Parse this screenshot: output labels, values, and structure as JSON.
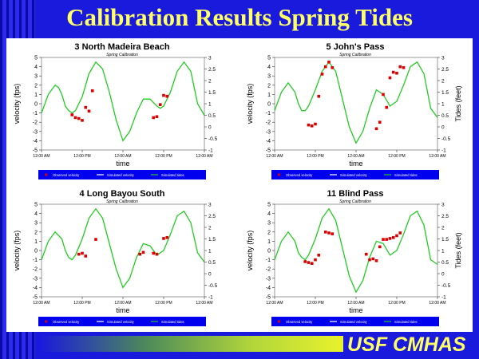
{
  "slide": {
    "title": "Calibration Results Spring Tides",
    "footer": "USF CMHAS"
  },
  "colors": {
    "background": "#1a1adc",
    "title": "#ffff66",
    "tide_line": "#22cc22",
    "observed": "#dd0000",
    "legend_bar": "#0000ee"
  },
  "chart_data": [
    {
      "type": "line",
      "title": "3 North Madeira Beach",
      "subtitle": "Spring Calibration",
      "xlabel": "time",
      "ylabel": "velocity (fps)",
      "y2label": "",
      "ylim": [
        -5,
        5
      ],
      "yticks": [
        "5",
        "4",
        "3",
        "2",
        "1",
        "0",
        "-1",
        "-2",
        "-3",
        "-4",
        "-5"
      ],
      "y2lim": [
        -1,
        3
      ],
      "y2ticks": [
        "3",
        "2.5",
        "2",
        "1.5",
        "1",
        "0.5",
        "0",
        "-0.5",
        "-1"
      ],
      "xticks": [
        "12:00 AM",
        "12:00 PM",
        "12:00 AM",
        "12:00 PM",
        "12:00 AM"
      ],
      "legend": [
        "Observed velocity",
        "Simulated velocity",
        "Simulated tides"
      ],
      "series": [
        {
          "name": "Simulated tides",
          "axis": "right",
          "x": [
            0,
            2,
            4,
            5,
            6,
            7,
            8,
            9,
            10,
            12,
            14,
            16,
            18,
            20,
            22,
            24,
            26,
            28,
            30,
            32,
            34,
            35,
            36,
            38,
            40,
            42,
            44,
            46,
            48
          ],
          "y": [
            0.6,
            1.4,
            1.8,
            1.7,
            1.4,
            0.9,
            0.7,
            0.6,
            0.7,
            1.3,
            2.3,
            2.8,
            2.5,
            1.5,
            0.3,
            -0.6,
            -0.2,
            0.6,
            1.2,
            1.2,
            0.9,
            0.8,
            0.9,
            1.5,
            2.4,
            2.8,
            2.4,
            1.0,
            0.5
          ]
        },
        {
          "name": "Observed velocity",
          "axis": "left",
          "x": [
            9,
            10,
            11,
            12,
            13,
            14,
            15,
            33,
            34,
            35,
            36,
            37
          ],
          "y": [
            -1.2,
            -1.5,
            -1.6,
            -1.8,
            -0.4,
            -0.8,
            1.4,
            -1.5,
            -1.4,
            -0.1,
            0.9,
            0.8
          ]
        }
      ]
    },
    {
      "type": "line",
      "title": "5 John's Pass",
      "subtitle": "Spring Calibration",
      "xlabel": "time",
      "ylabel": "velocity (fps)",
      "y2label": "Tides (feet)",
      "ylim": [
        -5,
        5
      ],
      "yticks": [
        "5",
        "4",
        "3",
        "2",
        "1",
        "0",
        "-1",
        "-2",
        "-3",
        "-4",
        "-5"
      ],
      "y2lim": [
        -1,
        3
      ],
      "y2ticks": [
        "3",
        "2.5",
        "2",
        "1.5",
        "1",
        "0.5",
        "0",
        "-0.5",
        "-1"
      ],
      "xticks": [
        "12:00 AM",
        "12:00 PM",
        "12:00 AM",
        "12:00 PM",
        "12:00 AM"
      ],
      "legend": [
        "Observed velocity",
        "Simulated velocity",
        "Simulated tides"
      ],
      "series": [
        {
          "name": "Simulated tides",
          "axis": "right",
          "x": [
            0,
            2,
            4,
            6,
            7,
            8,
            9,
            10,
            12,
            14,
            16,
            18,
            20,
            22,
            24,
            26,
            28,
            30,
            32,
            34,
            36,
            38,
            40,
            42,
            44,
            46,
            48
          ],
          "y": [
            0.7,
            1.5,
            1.9,
            1.5,
            1.0,
            0.7,
            0.7,
            0.9,
            1.6,
            2.4,
            2.8,
            2.4,
            1.2,
            0.0,
            -0.7,
            -0.2,
            0.8,
            1.6,
            1.4,
            0.9,
            1.1,
            1.8,
            2.6,
            2.8,
            2.3,
            0.8,
            0.4
          ]
        },
        {
          "name": "Observed velocity",
          "axis": "left",
          "x": [
            10,
            11,
            12,
            13,
            14,
            15,
            16,
            17,
            30,
            31,
            32,
            33,
            34,
            35,
            36,
            37,
            38
          ],
          "y": [
            -2.3,
            -2.4,
            -2.2,
            0.8,
            3.2,
            4.0,
            4.5,
            3.9,
            -2.7,
            -2.0,
            1.0,
            -0.4,
            2.8,
            3.4,
            3.3,
            4.0,
            3.9
          ]
        }
      ]
    },
    {
      "type": "line",
      "title": "4 Long Bayou South",
      "subtitle": "Spring Calibration",
      "xlabel": "time",
      "ylabel": "velocity (fps)",
      "y2label": "",
      "ylim": [
        -5,
        5
      ],
      "yticks": [
        "5",
        "4",
        "3",
        "2",
        "1",
        "0",
        "-1",
        "-2",
        "-3",
        "-4",
        "-5"
      ],
      "y2lim": [
        -1,
        3
      ],
      "y2ticks": [
        "3",
        "2.5",
        "2",
        "1.5",
        "1",
        "0.5",
        "0",
        "-0.5",
        "-1"
      ],
      "xticks": [
        "12:00 AM",
        "12:00 PM",
        "12:00 AM",
        "12:00 PM",
        "12:00 AM"
      ],
      "legend": [
        "Observed velocity",
        "Simulated velocity",
        "Simulated tides"
      ],
      "series": [
        {
          "name": "Simulated tides",
          "axis": "right",
          "x": [
            0,
            2,
            4,
            6,
            7,
            8,
            9,
            10,
            12,
            14,
            16,
            18,
            20,
            22,
            24,
            26,
            28,
            30,
            32,
            34,
            36,
            38,
            40,
            42,
            44,
            46,
            48
          ],
          "y": [
            0.6,
            1.4,
            1.8,
            1.5,
            1.0,
            0.7,
            0.6,
            0.8,
            1.5,
            2.4,
            2.8,
            2.4,
            1.3,
            0.2,
            -0.6,
            -0.2,
            0.7,
            1.3,
            1.2,
            0.8,
            1.0,
            1.7,
            2.5,
            2.7,
            2.2,
            0.9,
            0.5
          ]
        },
        {
          "name": "Observed velocity",
          "axis": "left",
          "x": [
            11,
            12,
            13,
            16,
            29,
            30,
            33,
            34,
            36,
            37
          ],
          "y": [
            -0.4,
            -0.3,
            -0.6,
            1.2,
            -0.4,
            -0.2,
            -0.3,
            -0.4,
            1.3,
            1.4
          ]
        }
      ]
    },
    {
      "type": "line",
      "title": "11 Blind Pass",
      "subtitle": "Spring Calibration",
      "xlabel": "time",
      "ylabel": "velocity (fps)",
      "y2label": "Tides (feet)",
      "ylim": [
        -5,
        5
      ],
      "yticks": [
        "5",
        "4",
        "3",
        "2",
        "1",
        "0",
        "-1",
        "-2",
        "-3",
        "-4",
        "-5"
      ],
      "y2lim": [
        -1,
        3
      ],
      "y2ticks": [
        "3",
        "2.5",
        "2",
        "1.5",
        "1",
        "0.5",
        "0",
        "-0.5",
        "-1"
      ],
      "xticks": [
        "12:00 AM",
        "12:00 PM",
        "12:00 AM",
        "12:00 PM",
        "12:00 AM"
      ],
      "legend": [
        "Observed velocity",
        "Simulated velocity",
        "Simulated tides"
      ],
      "series": [
        {
          "name": "Simulated tides",
          "axis": "right",
          "x": [
            0,
            2,
            4,
            6,
            7,
            8,
            9,
            10,
            12,
            14,
            16,
            18,
            20,
            22,
            24,
            26,
            28,
            30,
            32,
            34,
            36,
            38,
            40,
            42,
            44,
            46,
            48
          ],
          "y": [
            0.6,
            1.4,
            1.8,
            1.4,
            0.9,
            0.7,
            0.6,
            0.8,
            1.5,
            2.4,
            2.8,
            2.3,
            1.1,
            -0.1,
            -0.8,
            -0.3,
            0.7,
            1.4,
            1.3,
            0.8,
            1.0,
            1.7,
            2.5,
            2.7,
            2.1,
            0.6,
            0.4
          ]
        },
        {
          "name": "Observed velocity",
          "axis": "left",
          "x": [
            9,
            10,
            11,
            12,
            13,
            15,
            16,
            17,
            27,
            28,
            29,
            30,
            31,
            32,
            33,
            34,
            35,
            36,
            37
          ],
          "y": [
            -1.2,
            -1.3,
            -1.4,
            -1.0,
            -0.5,
            2.0,
            1.9,
            1.8,
            -0.4,
            -1.0,
            -0.9,
            -1.1,
            0.4,
            1.2,
            1.2,
            1.3,
            1.4,
            1.6,
            1.9
          ]
        }
      ]
    }
  ]
}
